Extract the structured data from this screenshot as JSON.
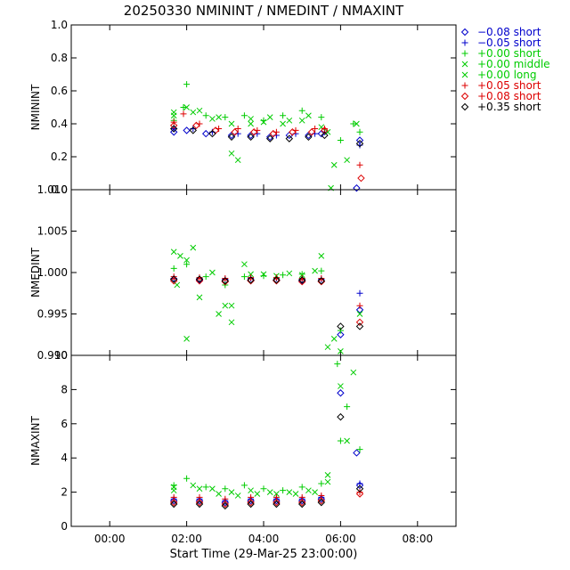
{
  "title": "20250330 NMININT / NMEDINT / NMAXINT",
  "xlabel": "Start Time (29-Mar-25 23:00:00)",
  "legend": [
    {
      "sym": "diamond",
      "label": "−0.08 short",
      "color": "#0000cc"
    },
    {
      "sym": "plus",
      "label": "−0.05 short",
      "color": "#0000cc"
    },
    {
      "sym": "plus",
      "label": "+0.00 short",
      "color": "#00cc00"
    },
    {
      "sym": "x",
      "label": "+0.00 middle",
      "color": "#00cc00"
    },
    {
      "sym": "x",
      "label": "+0.00 long",
      "color": "#00cc00"
    },
    {
      "sym": "plus",
      "label": "+0.05 short",
      "color": "#dd0000"
    },
    {
      "sym": "diamond",
      "label": "+0.08 short",
      "color": "#dd0000"
    },
    {
      "sym": "diamond",
      "label": "+0.35 short",
      "color": "#000000"
    }
  ],
  "chart_data": [
    {
      "type": "scatter",
      "ylabel": "NMININT",
      "ylim": [
        0.0,
        1.0
      ],
      "yticks": [
        0.0,
        0.2,
        0.4,
        0.6,
        0.8,
        1.0
      ],
      "ytick_labels": [
        "0.0",
        "0.2",
        "0.4",
        "0.6",
        "0.8",
        "1.0"
      ],
      "xlim": [
        "23:00",
        "09:00"
      ],
      "xticks": [
        "00:00",
        "02:00",
        "04:00",
        "06:00",
        "08:00"
      ],
      "series": [
        {
          "name": "−0.08 short",
          "color": "#0000cc",
          "symbol": "diamond",
          "x": [
            "01:40",
            "02:00",
            "02:30",
            "03:10",
            "03:40",
            "04:10",
            "04:40",
            "05:10",
            "05:30",
            "06:25",
            "06:30"
          ],
          "y": [
            0.35,
            0.36,
            0.34,
            0.33,
            0.33,
            0.32,
            0.33,
            0.33,
            0.34,
            0.01,
            0.3
          ]
        },
        {
          "name": "−0.05 short",
          "color": "#0000cc",
          "symbol": "plus",
          "x": [
            "01:40",
            "02:10",
            "02:40",
            "03:20",
            "03:50",
            "04:20",
            "04:50",
            "05:20",
            "05:35",
            "06:30"
          ],
          "y": [
            0.37,
            0.37,
            0.35,
            0.34,
            0.34,
            0.33,
            0.34,
            0.34,
            0.35,
            0.27
          ]
        },
        {
          "name": "+0.00 short",
          "color": "#00cc00",
          "symbol": "plus",
          "x": [
            "01:40",
            "01:55",
            "02:00",
            "02:30",
            "03:00",
            "03:30",
            "04:00",
            "04:30",
            "05:00",
            "05:30",
            "06:00",
            "06:20",
            "06:30"
          ],
          "y": [
            0.42,
            0.5,
            0.64,
            0.45,
            0.44,
            0.45,
            0.42,
            0.45,
            0.48,
            0.44,
            0.3,
            0.4,
            0.35
          ]
        },
        {
          "name": "+0.00 middle",
          "color": "#00cc00",
          "symbol": "x",
          "x": [
            "01:40",
            "02:00",
            "02:20",
            "02:50",
            "03:10",
            "03:40",
            "04:10",
            "04:40",
            "05:10",
            "05:40",
            "05:45",
            "06:25"
          ],
          "y": [
            0.47,
            0.5,
            0.48,
            0.44,
            0.4,
            0.43,
            0.44,
            0.42,
            0.45,
            0.35,
            0.01,
            0.4
          ]
        },
        {
          "name": "+0.00 long",
          "color": "#00cc00",
          "symbol": "x",
          "x": [
            "01:40",
            "02:10",
            "02:40",
            "03:10",
            "03:20",
            "03:40",
            "04:00",
            "04:30",
            "05:00",
            "05:30",
            "05:50",
            "06:10"
          ],
          "y": [
            0.45,
            0.47,
            0.43,
            0.22,
            0.18,
            0.4,
            0.41,
            0.4,
            0.42,
            0.38,
            0.15,
            0.18
          ]
        },
        {
          "name": "+0.05 short",
          "color": "#dd0000",
          "symbol": "plus",
          "x": [
            "01:40",
            "01:55",
            "02:20",
            "02:50",
            "03:20",
            "03:50",
            "04:20",
            "04:50",
            "05:20",
            "05:35",
            "06:30"
          ],
          "y": [
            0.41,
            0.46,
            0.4,
            0.37,
            0.37,
            0.36,
            0.35,
            0.36,
            0.37,
            0.37,
            0.15
          ]
        },
        {
          "name": "+0.08 short",
          "color": "#dd0000",
          "symbol": "diamond",
          "x": [
            "01:40",
            "02:15",
            "02:45",
            "03:15",
            "03:45",
            "04:15",
            "04:45",
            "05:15",
            "05:35",
            "06:32"
          ],
          "y": [
            0.39,
            0.39,
            0.36,
            0.35,
            0.35,
            0.34,
            0.35,
            0.35,
            0.36,
            0.07
          ]
        },
        {
          "name": "+0.35 short",
          "color": "#000000",
          "symbol": "diamond",
          "x": [
            "01:40",
            "02:10",
            "02:40",
            "03:10",
            "03:40",
            "04:10",
            "04:40",
            "05:10",
            "05:35",
            "06:30"
          ],
          "y": [
            0.37,
            0.36,
            0.34,
            0.32,
            0.32,
            0.31,
            0.31,
            0.32,
            0.33,
            0.28
          ]
        }
      ]
    },
    {
      "type": "scatter",
      "ylabel": "NMEDINT",
      "ylim": [
        0.99,
        1.01
      ],
      "yticks": [
        0.99,
        0.995,
        1.0,
        1.005,
        1.01
      ],
      "ytick_labels": [
        "0.990",
        "0.995",
        "1.000",
        "1.005",
        "1.010"
      ],
      "xlim": [
        "23:00",
        "09:00"
      ],
      "xticks": [
        "00:00",
        "02:00",
        "04:00",
        "06:00",
        "08:00"
      ],
      "series": [
        {
          "name": "−0.08 short",
          "color": "#0000cc",
          "symbol": "diamond",
          "x": [
            "01:40",
            "02:20",
            "03:00",
            "03:40",
            "04:20",
            "05:00",
            "05:30",
            "06:00",
            "06:30"
          ],
          "y": [
            0.9992,
            0.9991,
            0.999,
            0.9991,
            0.9991,
            0.999,
            0.999,
            0.9925,
            0.9955
          ]
        },
        {
          "name": "−0.05 short",
          "color": "#0000cc",
          "symbol": "plus",
          "x": [
            "01:40",
            "02:20",
            "03:00",
            "03:40",
            "04:20",
            "05:00",
            "05:30",
            "06:30"
          ],
          "y": [
            0.9993,
            0.9993,
            0.9992,
            0.9993,
            0.9993,
            0.9992,
            0.9992,
            0.9975
          ]
        },
        {
          "name": "+0.00 short",
          "color": "#00cc00",
          "symbol": "plus",
          "x": [
            "01:40",
            "02:00",
            "02:30",
            "03:00",
            "03:30",
            "04:00",
            "04:30",
            "05:00",
            "05:30",
            "06:00"
          ],
          "y": [
            1.0005,
            1.001,
            0.9995,
            0.9985,
            0.9995,
            0.9996,
            0.9997,
            0.9998,
            1.0002,
            0.993
          ]
        },
        {
          "name": "+0.00 middle",
          "color": "#00cc00",
          "symbol": "x",
          "x": [
            "01:40",
            "01:50",
            "02:00",
            "02:10",
            "02:40",
            "03:10",
            "03:30",
            "04:00",
            "04:40",
            "05:20",
            "05:40",
            "06:00"
          ],
          "y": [
            1.0025,
            1.002,
            1.0015,
            1.003,
            1.0,
            0.996,
            1.001,
            0.9998,
            0.9999,
            1.0002,
            0.991,
            0.9905
          ]
        },
        {
          "name": "+0.00 long",
          "color": "#00cc00",
          "symbol": "x",
          "x": [
            "01:45",
            "02:00",
            "02:20",
            "02:50",
            "03:00",
            "03:10",
            "03:40",
            "04:20",
            "05:00",
            "05:30",
            "05:50",
            "06:30"
          ],
          "y": [
            0.9985,
            0.992,
            0.997,
            0.995,
            0.996,
            0.994,
            0.9998,
            0.9996,
            0.9997,
            1.002,
            0.992,
            0.995
          ]
        },
        {
          "name": "+0.05 short",
          "color": "#dd0000",
          "symbol": "plus",
          "x": [
            "01:40",
            "02:20",
            "03:00",
            "03:40",
            "04:20",
            "05:00",
            "05:30",
            "06:30"
          ],
          "y": [
            0.9995,
            0.9994,
            0.9993,
            0.9994,
            0.9994,
            0.9993,
            0.9993,
            0.996
          ]
        },
        {
          "name": "+0.08 short",
          "color": "#dd0000",
          "symbol": "diamond",
          "x": [
            "01:40",
            "02:20",
            "03:00",
            "03:40",
            "04:20",
            "05:00",
            "05:30",
            "06:30"
          ],
          "y": [
            0.999,
            0.999,
            0.9989,
            0.999,
            0.999,
            0.9989,
            0.9989,
            0.994
          ]
        },
        {
          "name": "+0.35 short",
          "color": "#000000",
          "symbol": "diamond",
          "x": [
            "01:40",
            "02:20",
            "03:00",
            "03:40",
            "04:20",
            "05:00",
            "05:30",
            "06:00",
            "06:30"
          ],
          "y": [
            0.9992,
            0.9992,
            0.999,
            0.9991,
            0.9991,
            0.9991,
            0.999,
            0.9935,
            0.9935
          ]
        }
      ]
    },
    {
      "type": "scatter",
      "ylabel": "NMAXINT",
      "ylim": [
        0,
        10
      ],
      "yticks": [
        0,
        2,
        4,
        6,
        8,
        10
      ],
      "ytick_labels": [
        "0",
        "2",
        "4",
        "6",
        "8",
        "10"
      ],
      "xlim": [
        "23:00",
        "09:00"
      ],
      "xticks": [
        "00:00",
        "02:00",
        "04:00",
        "06:00",
        "08:00"
      ],
      "series": [
        {
          "name": "−0.08 short",
          "color": "#0000cc",
          "symbol": "diamond",
          "x": [
            "01:40",
            "02:20",
            "03:00",
            "03:40",
            "04:20",
            "05:00",
            "05:30",
            "06:00",
            "06:25",
            "06:30"
          ],
          "y": [
            1.5,
            1.5,
            1.4,
            1.5,
            1.5,
            1.5,
            1.6,
            7.8,
            4.3,
            2.4
          ]
        },
        {
          "name": "−0.05 short",
          "color": "#0000cc",
          "symbol": "plus",
          "x": [
            "01:40",
            "02:20",
            "03:00",
            "03:40",
            "04:20",
            "05:00",
            "05:30",
            "06:30"
          ],
          "y": [
            1.6,
            1.6,
            1.5,
            1.6,
            1.6,
            1.6,
            1.7,
            2.5
          ]
        },
        {
          "name": "+0.00 short",
          "color": "#00cc00",
          "symbol": "plus",
          "x": [
            "01:40",
            "02:00",
            "02:30",
            "03:00",
            "03:30",
            "04:00",
            "04:30",
            "05:00",
            "05:30",
            "05:55",
            "06:00",
            "06:10",
            "06:30"
          ],
          "y": [
            2.4,
            2.8,
            2.3,
            2.2,
            2.4,
            2.2,
            2.1,
            2.3,
            2.5,
            9.5,
            5.0,
            7.0,
            4.5
          ]
        },
        {
          "name": "+0.00 middle",
          "color": "#00cc00",
          "symbol": "x",
          "x": [
            "01:40",
            "02:10",
            "02:40",
            "03:10",
            "03:40",
            "04:10",
            "04:40",
            "05:10",
            "05:40",
            "06:00",
            "06:20"
          ],
          "y": [
            2.3,
            2.4,
            2.2,
            2.0,
            2.1,
            2.0,
            2.0,
            2.1,
            2.6,
            8.2,
            9.0
          ]
        },
        {
          "name": "+0.00 long",
          "color": "#00cc00",
          "symbol": "x",
          "x": [
            "01:40",
            "02:20",
            "02:50",
            "03:20",
            "03:50",
            "04:20",
            "04:50",
            "05:20",
            "05:40",
            "06:10"
          ],
          "y": [
            2.1,
            2.2,
            1.9,
            1.8,
            1.9,
            1.9,
            1.9,
            2.0,
            3.0,
            5.0
          ]
        },
        {
          "name": "+0.05 short",
          "color": "#dd0000",
          "symbol": "plus",
          "x": [
            "01:40",
            "02:20",
            "03:00",
            "03:40",
            "04:20",
            "05:00",
            "05:30",
            "06:30"
          ],
          "y": [
            1.7,
            1.7,
            1.6,
            1.7,
            1.7,
            1.7,
            1.8,
            2.0
          ]
        },
        {
          "name": "+0.08 short",
          "color": "#dd0000",
          "symbol": "diamond",
          "x": [
            "01:40",
            "02:20",
            "03:00",
            "03:40",
            "04:20",
            "05:00",
            "05:30",
            "06:30"
          ],
          "y": [
            1.4,
            1.4,
            1.3,
            1.4,
            1.4,
            1.4,
            1.5,
            1.9
          ]
        },
        {
          "name": "+0.35 short",
          "color": "#000000",
          "symbol": "diamond",
          "x": [
            "01:40",
            "02:20",
            "03:00",
            "03:40",
            "04:20",
            "05:00",
            "05:30",
            "06:00",
            "06:30"
          ],
          "y": [
            1.3,
            1.3,
            1.2,
            1.3,
            1.3,
            1.3,
            1.4,
            6.4,
            2.2
          ]
        }
      ]
    }
  ]
}
